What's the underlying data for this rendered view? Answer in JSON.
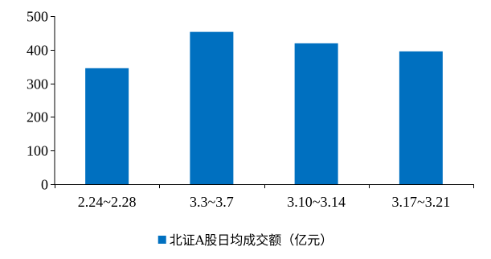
{
  "chart_data": {
    "type": "bar",
    "categories": [
      "2.24~2.28",
      "3.3~3.7",
      "3.10~3.14",
      "3.17~3.21"
    ],
    "series": [
      {
        "name": "北证A股日均成交额（亿元）",
        "values": [
          345,
          453,
          419,
          395
        ],
        "color": "#0070C0"
      }
    ],
    "ylim": [
      0,
      500
    ],
    "yticks": [
      0,
      100,
      200,
      300,
      400,
      500
    ],
    "grid": false,
    "legend_position": "bottom-center"
  }
}
